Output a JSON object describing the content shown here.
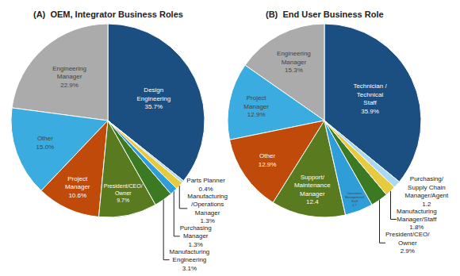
{
  "chart_data": [
    {
      "type": "pie",
      "title": "OEM, Integrator Business Roles",
      "annotations": [
        "(A)"
      ],
      "categories": [
        "Design\nEngineering\n35.7%",
        "Engineering\nManager\n22.9%",
        "Other\n15.0%",
        "Project\nManager\n10.6%",
        "President/CEO/\nOwner\n9.7%",
        "Manufacturing\nEngineering\n3.1%",
        "Purchasing\nManager\n1.3%",
        "Manufacturing\n/Operations\nManager\n1.3%",
        "Parts Planner\n0.4%"
      ],
      "values": [
        35.7,
        22.9,
        15.0,
        10.6,
        9.7,
        3.1,
        1.3,
        1.3,
        0.4
      ],
      "colors": [
        "#1B4F82",
        "#ABABAB",
        "#3AACE0",
        "#C04A0A",
        "#5A7A20",
        "#3B7A22",
        "#2F9DD8",
        "#E8CA40",
        "#A8D8F2"
      ]
    },
    {
      "type": "pie",
      "title": "End User Business Role",
      "annotations": [
        "(B)"
      ],
      "categories": [
        "Technician /\nTechnical\nStaff\n35.9%",
        "Engineering\nManager\n15.3%",
        "Project\nManager\n12.9%",
        "Other\n12.9%",
        "Support/\nMaintenance\nManager\n12.4",
        "Operations\nManagement/\nStaff\n4.7",
        "President/CEO/\nOwner\n2.9%",
        "Manufacturing\nManager/Staff\n1.8%",
        "Purchasing/\nSupply Chain\nManager/Agent\n1.2"
      ],
      "values": [
        35.9,
        15.3,
        12.9,
        12.9,
        12.4,
        4.7,
        2.9,
        1.8,
        1.2
      ],
      "colors": [
        "#1B4F82",
        "#ABABAB",
        "#3AACE0",
        "#C04A0A",
        "#5A7A20",
        "#2F9DD8",
        "#3B7A22",
        "#E8CA40",
        "#A8D8F2"
      ]
    }
  ]
}
